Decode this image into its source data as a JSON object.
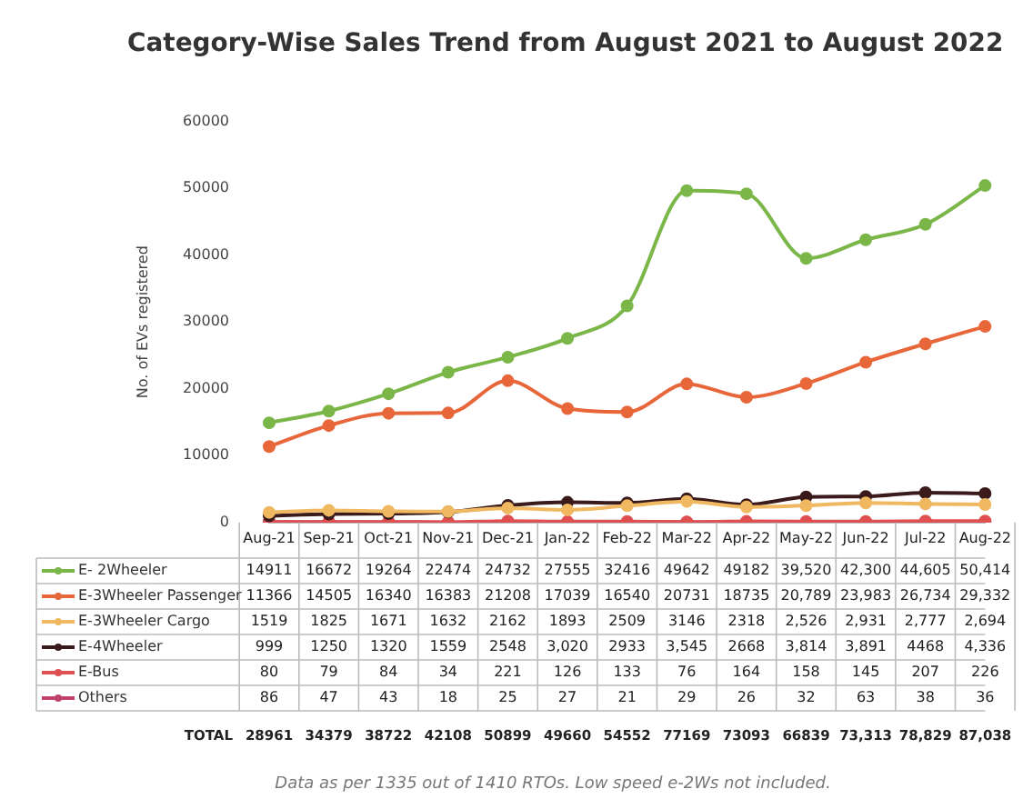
{
  "chart_data": {
    "type": "line",
    "title": "Category-Wise Sales Trend from August 2021 to August 2022",
    "ylabel": "No. of EVs registered",
    "categories": [
      "Aug-21",
      "Sep-21",
      "Oct-21",
      "Nov-21",
      "Dec-21",
      "Jan-22",
      "Feb-22",
      "Mar-22",
      "Apr-22",
      "May-22",
      "Jun-22",
      "Jul-22",
      "Aug-22"
    ],
    "series": [
      {
        "name": "E- 2Wheeler",
        "color": "#7ab648",
        "values": [
          14911,
          16672,
          19264,
          22474,
          24732,
          27555,
          32416,
          49642,
          49182,
          39520,
          42300,
          44605,
          50414
        ],
        "value_labels": [
          "14911",
          "16672",
          "19264",
          "22474",
          "24732",
          "27555",
          "32416",
          "49642",
          "49182",
          "39,520",
          "42,300",
          "44,605",
          "50,414"
        ]
      },
      {
        "name": "E-3Wheeler Passenger",
        "color": "#e8673a",
        "values": [
          11366,
          14505,
          16340,
          16383,
          21208,
          17039,
          16540,
          20731,
          18735,
          20789,
          23983,
          26734,
          29332
        ],
        "value_labels": [
          "11366",
          "14505",
          "16340",
          "16383",
          "21208",
          "17039",
          "16540",
          "20731",
          "18735",
          "20,789",
          "23,983",
          "26,734",
          "29,332"
        ]
      },
      {
        "name": "E-3Wheeler Cargo",
        "color": "#f0b860",
        "values": [
          1519,
          1825,
          1671,
          1632,
          2162,
          1893,
          2509,
          3146,
          2318,
          2526,
          2931,
          2777,
          2694
        ],
        "value_labels": [
          "1519",
          "1825",
          "1671",
          "1632",
          "2162",
          "1893",
          "2509",
          "3146",
          "2318",
          "2,526",
          "2,931",
          "2,777",
          "2,694"
        ]
      },
      {
        "name": "E-4Wheeler",
        "color": "#3a1a1a",
        "values": [
          999,
          1250,
          1320,
          1559,
          2548,
          3020,
          2933,
          3545,
          2668,
          3814,
          3891,
          4468,
          4336
        ],
        "value_labels": [
          "999",
          "1250",
          "1320",
          "1559",
          "2548",
          "3,020",
          "2933",
          "3,545",
          "2668",
          "3,814",
          "3,891",
          "4468",
          "4,336"
        ]
      },
      {
        "name": "E-Bus",
        "color": "#e05050",
        "values": [
          80,
          79,
          84,
          34,
          221,
          126,
          133,
          76,
          164,
          158,
          145,
          207,
          226
        ],
        "value_labels": [
          "80",
          "79",
          "84",
          "34",
          "221",
          "126",
          "133",
          "76",
          "164",
          "158",
          "145",
          "207",
          "226"
        ]
      },
      {
        "name": "Others",
        "color": "#c04070",
        "values": [
          86,
          47,
          43,
          18,
          25,
          27,
          21,
          29,
          26,
          32,
          63,
          38,
          36
        ],
        "value_labels": [
          "86",
          "47",
          "43",
          "18",
          "25",
          "27",
          "21",
          "29",
          "26",
          "32",
          "63",
          "38",
          "36"
        ]
      }
    ],
    "totals": [
      "28961",
      "34379",
      "38722",
      "42108",
      "50899",
      "49660",
      "54552",
      "77169",
      "73093",
      "66839",
      "73,313",
      "78,829",
      "87,038"
    ],
    "annotations": [
      "TOTAL",
      "Data as per 1335 out of 1410 RTOs. Low speed e-2Ws not included."
    ],
    "ylim": [
      0,
      60000
    ],
    "yticks": [
      0,
      10000,
      20000,
      30000,
      40000,
      50000,
      60000
    ],
    "grid": false,
    "legend": "bottom",
    "marker": "circle",
    "line_style": "solid"
  }
}
